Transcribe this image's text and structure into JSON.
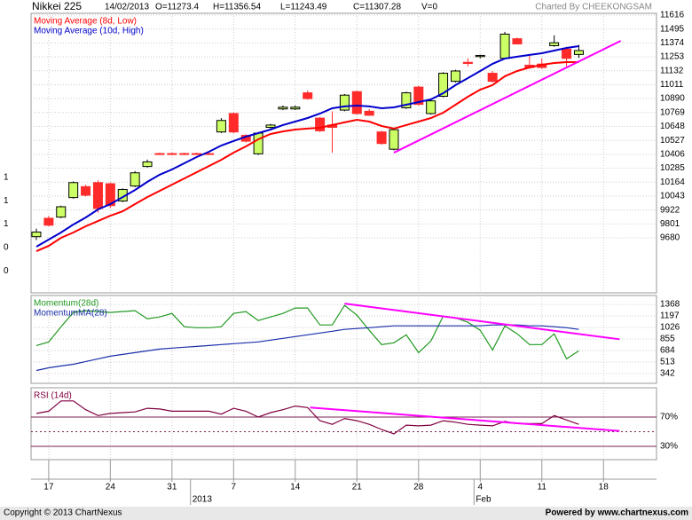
{
  "header": {
    "title": "Nikkei 225",
    "date": "14/02/2013",
    "open": "O=11273.4",
    "high": "H=11356.54",
    "low": "L=11243.49",
    "close": "C=11307.28",
    "volume": "V=0",
    "credit": "Charted By CHEEKONGSAM"
  },
  "footer": {
    "left": "Copyright © 2013 ChartNexus",
    "right": "Powered by www.chartnexus.com"
  },
  "chart_data": [
    {
      "type": "candlestick",
      "xlim": [
        -0.43,
        50.3
      ],
      "xticks": [
        {
          "value": 1,
          "label": "17"
        },
        {
          "value": 6,
          "label": "24"
        },
        {
          "value": 11,
          "label": "31"
        },
        {
          "value": 16,
          "label": "7"
        },
        {
          "value": 21,
          "label": "14"
        },
        {
          "value": 26,
          "label": "21"
        },
        {
          "value": 31,
          "label": "28"
        },
        {
          "value": 36,
          "label": "4"
        },
        {
          "value": 41,
          "label": "11"
        },
        {
          "value": 46,
          "label": "18"
        }
      ],
      "x_secondary": [
        {
          "value": 12.5,
          "label": "2013"
        },
        {
          "value": 35.5,
          "label": "Feb"
        }
      ],
      "ylim": [
        9202,
        11631
      ],
      "yticks": [
        9680,
        9801,
        9922,
        10043,
        10164,
        10285,
        10406,
        10527,
        10648,
        10769,
        10890,
        11011,
        11132,
        11253,
        11374,
        11495,
        11616
      ],
      "grid": true,
      "up_color": "#ccff66",
      "down_color": "#ff2a2a",
      "stray_labels": [
        "1",
        "1",
        "1",
        "0",
        "0"
      ],
      "ohlc": {
        "open": [
          9690,
          9850,
          9860,
          10030,
          10125,
          10160,
          10150,
          10000,
          10130,
          10300,
          10412,
          10412,
          10412,
          10412,
          10412,
          10600,
          10760,
          10570,
          10410,
          10640,
          10800,
          10800,
          10940,
          10720,
          10660,
          10790,
          10950,
          10780,
          10600,
          10450,
          10810,
          10990,
          10760,
          10910,
          11040,
          11205,
          11255,
          11110,
          11240,
          11410,
          11180,
          11190,
          11350,
          11320,
          11273.4
        ],
        "high": [
          9760,
          9870,
          9960,
          10170,
          10140,
          10180,
          10160,
          10110,
          10260,
          10360,
          10420,
          10420,
          10420,
          10420,
          10420,
          10720,
          10770,
          10580,
          10600,
          10670,
          10830,
          10830,
          10960,
          10730,
          10780,
          10930,
          10960,
          10800,
          10610,
          10630,
          10950,
          11000,
          10880,
          11120,
          11140,
          11240,
          11270,
          11130,
          11470,
          11420,
          11260,
          11240,
          11440,
          11340,
          11356.54
        ],
        "low": [
          9660,
          9780,
          9850,
          10020,
          10040,
          9900,
          9940,
          9990,
          10120,
          10290,
          10400,
          10400,
          10400,
          10400,
          10400,
          10590,
          10590,
          10510,
          10400,
          10630,
          10790,
          10790,
          10880,
          10600,
          10420,
          10780,
          10750,
          10740,
          10490,
          10440,
          10800,
          10830,
          10750,
          10900,
          11030,
          11170,
          11240,
          11030,
          11230,
          11360,
          11150,
          11150,
          11340,
          11170,
          11243.49
        ],
        "close": [
          9730,
          9790,
          9950,
          10160,
          10050,
          9935,
          9960,
          10100,
          10245,
          10340,
          10408,
          10408,
          10408,
          10408,
          10408,
          10700,
          10600,
          10520,
          10590,
          10660,
          10815,
          10815,
          10890,
          10610,
          10640,
          10920,
          10760,
          10745,
          10500,
          10620,
          10940,
          10840,
          10870,
          11110,
          11130,
          11195,
          11265,
          11040,
          11450,
          11365,
          11160,
          11160,
          11375,
          11240,
          11307.28
        ]
      },
      "series": [
        {
          "name": "Moving Average (8d, Low)",
          "color": "#ff0000",
          "values": [
            9564,
            9610,
            9680,
            9726,
            9780,
            9826,
            9872,
            9911,
            9973,
            10034,
            10088,
            10142,
            10196,
            10250,
            10304,
            10358,
            10420,
            10474,
            10536,
            10582,
            10605,
            10621,
            10629,
            10636,
            10660,
            10683,
            10706,
            10690,
            10652,
            10629,
            10660,
            10690,
            10721,
            10767,
            10837,
            10906,
            10968,
            11007,
            11084,
            11130,
            11161,
            11184,
            11199,
            11207,
            11207
          ]
        },
        {
          "name": "Moving Average (10d, High)",
          "color": "#0000cc",
          "values": [
            9603,
            9665,
            9726,
            9796,
            9857,
            9927,
            9973,
            10034,
            10096,
            10166,
            10228,
            10274,
            10328,
            10382,
            10428,
            10482,
            10521,
            10559,
            10590,
            10621,
            10660,
            10690,
            10721,
            10760,
            10806,
            10822,
            10829,
            10822,
            10806,
            10814,
            10837,
            10860,
            10883,
            10937,
            11007,
            11068,
            11130,
            11192,
            11238,
            11254,
            11269,
            11284,
            11307,
            11330,
            11346
          ]
        }
      ],
      "trendlines": [
        {
          "color": "#ff00ff",
          "x": [
            29,
            47.4
          ],
          "y": [
            10420,
            11392
          ]
        }
      ]
    },
    {
      "type": "line",
      "ylim": [
        196,
        1501
      ],
      "yticks": [
        342,
        513,
        684,
        855,
        1026,
        1197,
        1368
      ],
      "grid": true,
      "series": [
        {
          "name": "Momentum(28d)",
          "color": "#229922",
          "values": [
            758,
            811,
            1037,
            1249,
            1275,
            1262,
            1249,
            1262,
            1275,
            1156,
            1182,
            1235,
            1037,
            1023,
            1023,
            1037,
            1235,
            1262,
            1129,
            1182,
            1235,
            1315,
            1315,
            1063,
            1063,
            1355,
            1209,
            984,
            772,
            799,
            917,
            652,
            825,
            1196,
            1169,
            1103,
            984,
            692,
            1050,
            931,
            772,
            772,
            931,
            560,
            679
          ]
        },
        {
          "name": "MomentumMA(28)",
          "color": "#1a2ea8",
          "values": [
            387,
            427,
            454,
            480,
            520,
            560,
            599,
            626,
            652,
            679,
            705,
            719,
            732,
            745,
            758,
            772,
            785,
            798,
            811,
            838,
            864,
            891,
            917,
            944,
            970,
            997,
            1010,
            1023,
            1037,
            1050,
            1050,
            1050,
            1050,
            1050,
            1050,
            1050,
            1050,
            1063,
            1063,
            1063,
            1050,
            1050,
            1037,
            1023,
            997
          ]
        }
      ],
      "trendlines": [
        {
          "color": "#ff00ff",
          "x": [
            25,
            47.3
          ],
          "y": [
            1381,
            851
          ]
        }
      ]
    },
    {
      "type": "line",
      "ylim": [
        11.8,
        110
      ],
      "yticks": [
        {
          "value": 70,
          "label": "70%"
        },
        {
          "value": 30,
          "label": "30%"
        }
      ],
      "reference_lines": [
        {
          "value": 50,
          "dash": true
        }
      ],
      "series": [
        {
          "name": "RSI (14d)",
          "color": "#800040",
          "values": [
            75,
            78,
            92,
            92,
            80,
            72,
            75,
            76,
            77,
            82,
            81,
            78,
            78,
            78,
            78,
            74,
            82,
            78,
            70,
            76,
            80,
            85,
            83,
            65,
            60,
            68,
            65,
            60,
            53,
            47,
            59,
            58,
            59,
            65,
            63,
            60,
            59,
            58,
            64,
            61,
            61,
            61,
            72,
            66,
            60
          ]
        }
      ],
      "trendlines": [
        {
          "color": "#ff00ff",
          "x": [
            22.2,
            47.3
          ],
          "y": [
            83,
            51
          ]
        }
      ]
    }
  ]
}
